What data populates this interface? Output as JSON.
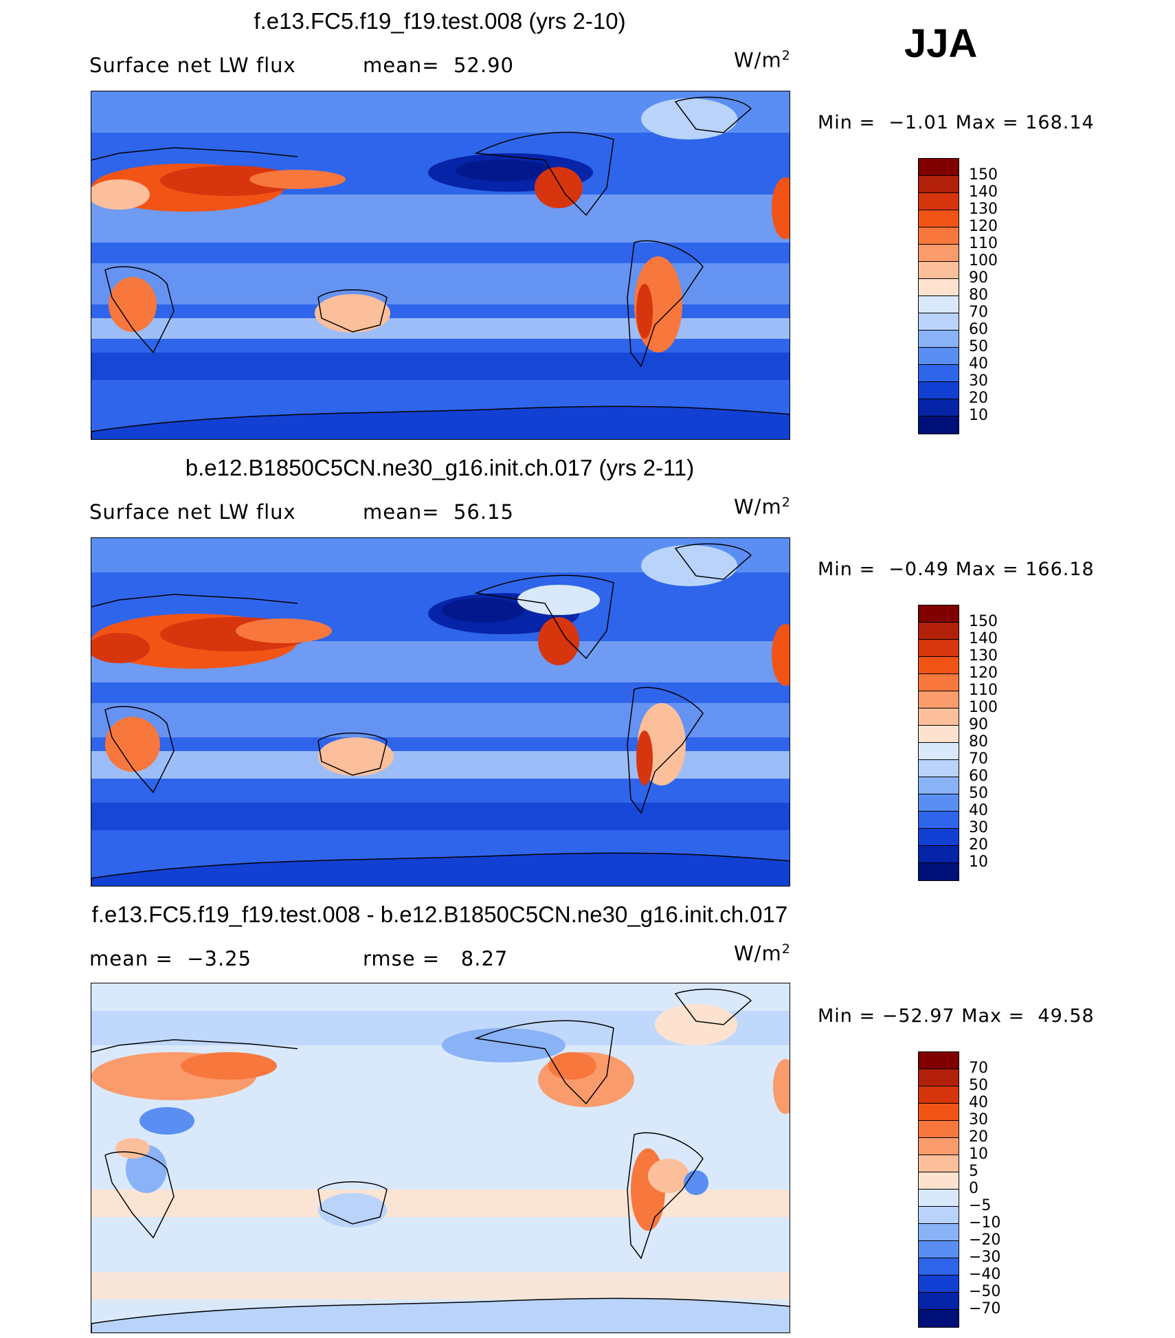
{
  "season": "JJA",
  "panels": [
    {
      "title": "f.e13.FC5.f19_f19.test.008 (yrs 2-10)",
      "left_text": "Surface net LW flux",
      "mid_text": "mean=  52.90",
      "units_base": "W/m",
      "units_exp": "2",
      "minmax": "Min =  −1.01 Max = 168.14",
      "colorbar": {
        "labels": [
          "150",
          "140",
          "130",
          "120",
          "110",
          "100",
          "90",
          "80",
          "70",
          "60",
          "50",
          "40",
          "30",
          "20",
          "10"
        ],
        "colors": [
          "#800000",
          "#b3200a",
          "#d7350d",
          "#f25416",
          "#f7773d",
          "#fa9b6b",
          "#fcbf9b",
          "#fde3cf",
          "#d9e9fb",
          "#b9d3fb",
          "#8ab2f7",
          "#5a8ef2",
          "#2f65eb",
          "#1240d2",
          "#0624a8",
          "#00107a"
        ]
      }
    },
    {
      "title": "b.e12.B1850C5CN.ne30_g16.init.ch.017 (yrs 2-11)",
      "left_text": "Surface net LW flux",
      "mid_text": "mean=  56.15",
      "units_base": "W/m",
      "units_exp": "2",
      "minmax": "Min =  −0.49 Max = 166.18",
      "colorbar": {
        "labels": [
          "150",
          "140",
          "130",
          "120",
          "110",
          "100",
          "90",
          "80",
          "70",
          "60",
          "50",
          "40",
          "30",
          "20",
          "10"
        ],
        "colors": [
          "#800000",
          "#b3200a",
          "#d7350d",
          "#f25416",
          "#f7773d",
          "#fa9b6b",
          "#fcbf9b",
          "#fde3cf",
          "#d9e9fb",
          "#b9d3fb",
          "#8ab2f7",
          "#5a8ef2",
          "#2f65eb",
          "#1240d2",
          "#0624a8",
          "#00107a"
        ]
      }
    },
    {
      "title": "f.e13.FC5.f19_f19.test.008 - b.e12.B1850C5CN.ne30_g16.init.ch.017",
      "left_text": "mean =  −3.25",
      "mid_text": "rmse =   8.27",
      "units_base": "W/m",
      "units_exp": "2",
      "minmax": "Min = −52.97 Max =  49.58",
      "colorbar": {
        "labels": [
          "70",
          "50",
          "40",
          "30",
          "20",
          "10",
          "5",
          "0",
          "−5",
          "−10",
          "−20",
          "−30",
          "−40",
          "−50",
          "−70"
        ],
        "colors": [
          "#800000",
          "#b3200a",
          "#d7350d",
          "#f25416",
          "#f7773d",
          "#fa9b6b",
          "#fcbf9b",
          "#fde3cf",
          "#d9e9fb",
          "#b9d3fb",
          "#8ab2f7",
          "#5a8ef2",
          "#2f65eb",
          "#1240d2",
          "#0624a8",
          "#00107a"
        ]
      }
    }
  ]
}
